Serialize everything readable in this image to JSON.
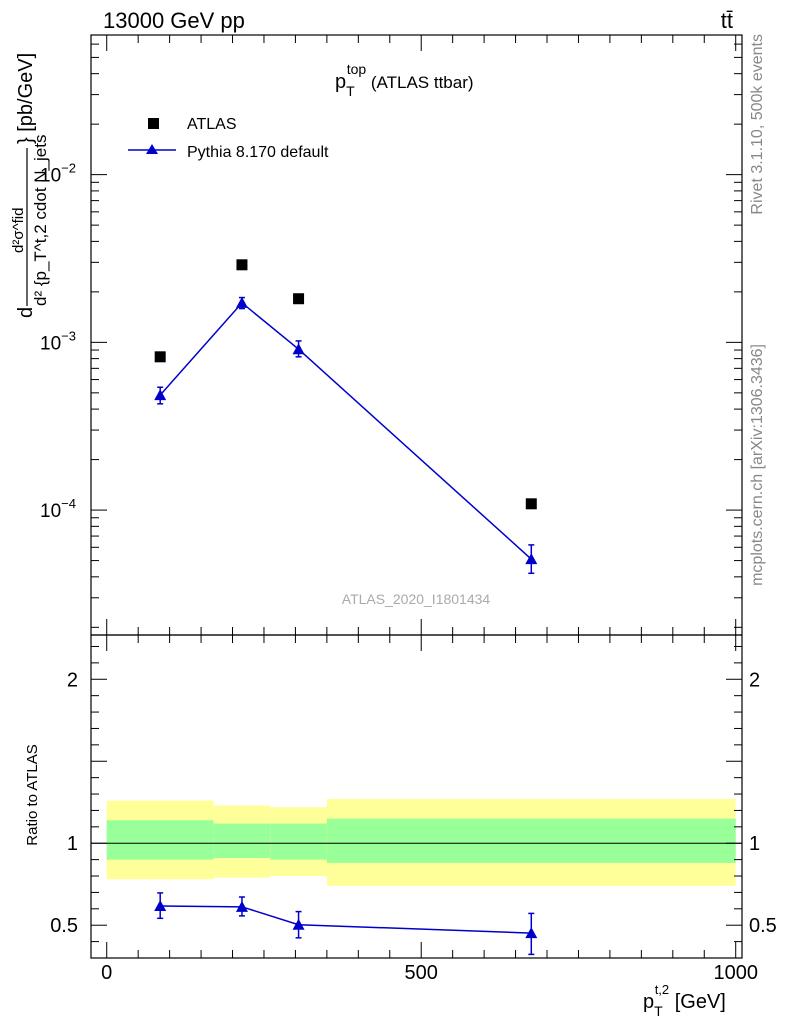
{
  "header": {
    "energy_label": "13000 GeV pp",
    "process_label": "tt̄"
  },
  "side_labels": {
    "rivet": "Rivet 3.1.10,  500k events",
    "mcplots": "mcplots.cern.ch [arXiv:1306.3436]"
  },
  "watermark": "ATLAS_2020_I1801434",
  "colors": {
    "mc_line": "#0000cc",
    "data_marker": "#000000",
    "band_outer": "#ffff99",
    "band_inner": "#99ff99",
    "side_text": "#888888",
    "watermark": "#aaaaaa"
  },
  "chart_data": [
    {
      "type": "scatter",
      "panel": "main",
      "title": {
        "main": "p",
        "sub": "T",
        "sup": "top",
        "rest": " (ATLAS ttbar)"
      },
      "ylabel": {
        "numerator": "d",
        "inner_num": "d²σ^fid",
        "inner_den": "d² {p_T^t,2 cdot N_jets",
        "suffix": "} [pb/GeV]"
      },
      "yscale": "log",
      "ylim": [
        1.8e-05,
        0.068
      ],
      "xlim": [
        -25,
        1010
      ],
      "y_ticks": [
        {
          "value": 0.0001,
          "base": "10",
          "exp": "−4"
        },
        {
          "value": 0.001,
          "base": "10",
          "exp": "−3"
        },
        {
          "value": 0.01,
          "base": "10",
          "exp": "−2"
        }
      ],
      "legend_position": "top-left",
      "series": [
        {
          "name": "ATLAS",
          "marker": "square",
          "x": [
            85,
            215,
            305,
            675
          ],
          "y": [
            0.00082,
            0.0029,
            0.00182,
            0.000109
          ]
        },
        {
          "name": "Pythia 8.170 default",
          "marker": "triangle",
          "x": [
            85,
            215,
            305,
            675
          ],
          "y": [
            0.000485,
            0.00172,
            0.00091,
            5.1e-05
          ],
          "y_err_low": [
            5.5e-05,
            0.00013,
            9e-05,
            9e-06
          ],
          "y_err_high": [
            5.5e-05,
            0.00013,
            0.00011,
            1.1e-05
          ]
        }
      ]
    },
    {
      "type": "line",
      "panel": "ratio",
      "ylabel": "Ratio to ATLAS",
      "xlabel": {
        "main": "p",
        "sub": "T",
        "sup": "t,2",
        "rest": " [GeV]"
      },
      "ylim": [
        0.3,
        2.27
      ],
      "xlim": [
        -25,
        1010
      ],
      "x_ticks": [
        "0",
        "500",
        "1000"
      ],
      "y_ticks": [
        "0.5",
        "1",
        "2"
      ],
      "bands": [
        {
          "x": [
            0,
            170
          ],
          "outer": [
            0.78,
            1.26
          ],
          "inner": [
            0.9,
            1.14
          ]
        },
        {
          "x": [
            170,
            260
          ],
          "outer": [
            0.79,
            1.23
          ],
          "inner": [
            0.91,
            1.12
          ]
        },
        {
          "x": [
            260,
            350
          ],
          "outer": [
            0.8,
            1.22
          ],
          "inner": [
            0.9,
            1.12
          ]
        },
        {
          "x": [
            350,
            1000
          ],
          "outer": [
            0.74,
            1.27
          ],
          "inner": [
            0.88,
            1.15
          ]
        }
      ],
      "series": [
        {
          "name": "Pythia 8.170 default",
          "x": [
            85,
            215,
            305,
            675
          ],
          "y": [
            0.617,
            0.612,
            0.503,
            0.452
          ],
          "y_err_low": [
            0.075,
            0.055,
            0.08,
            0.13
          ],
          "y_err_high": [
            0.08,
            0.06,
            0.08,
            0.12
          ]
        }
      ]
    }
  ]
}
